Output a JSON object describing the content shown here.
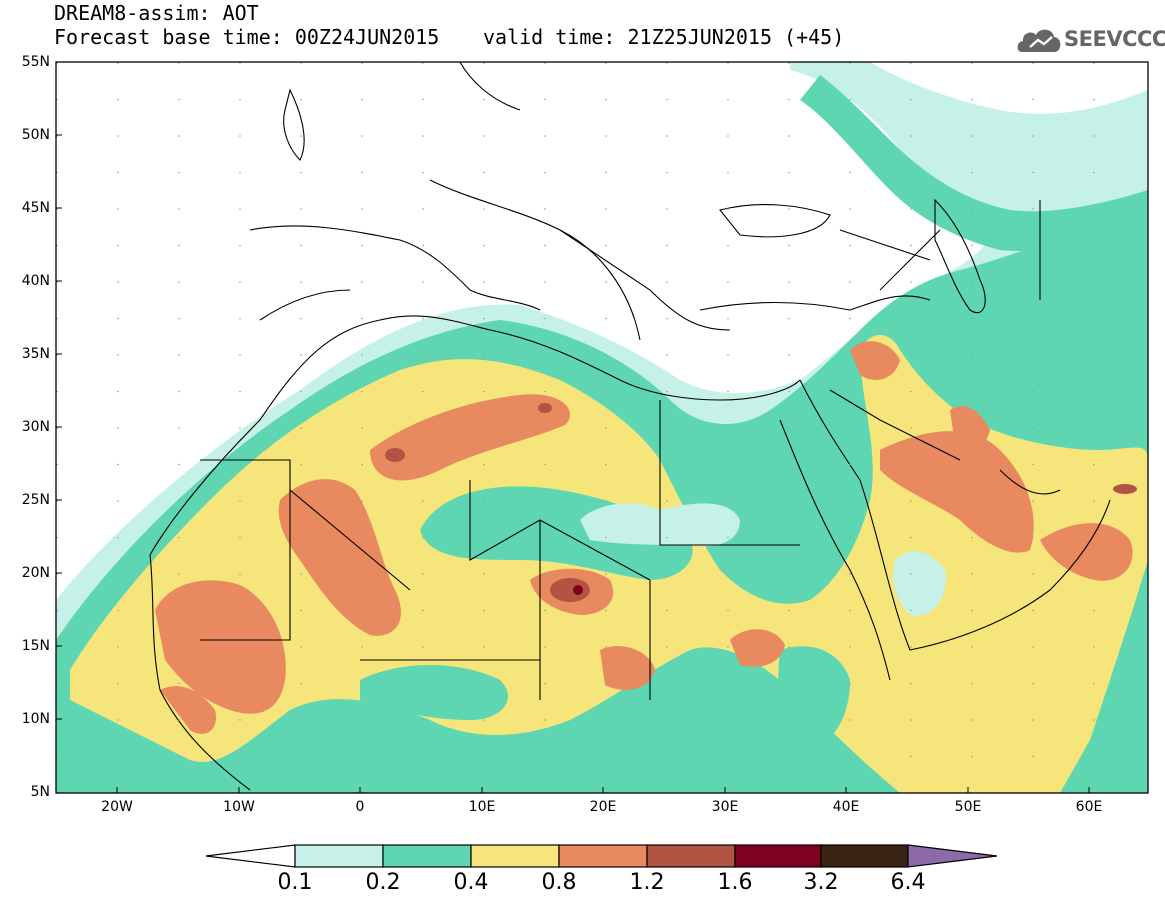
{
  "header": {
    "title_line1": "DREAM8-assim: AOT",
    "title_line2": "Forecast base time: 00Z24JUN2015",
    "valid_time": "valid time: 21Z25JUN2015 (+45)",
    "logo_text": "SEEVCCC"
  },
  "axes": {
    "lat_labels": [
      "55N",
      "50N",
      "45N",
      "40N",
      "35N",
      "30N",
      "25N",
      "20N",
      "15N",
      "10N",
      "5N"
    ],
    "lon_labels": [
      "20W",
      "10W",
      "0",
      "10E",
      "20E",
      "30E",
      "40E",
      "50E",
      "60E"
    ]
  },
  "colorbar": {
    "labels": [
      "0.1",
      "0.2",
      "0.4",
      "0.8",
      "1.2",
      "1.6",
      "3.2",
      "6.4"
    ],
    "colors": [
      "#ffffff",
      "#c6f1e9",
      "#5ed6b1",
      "#f6e57a",
      "#e8895f",
      "#b25444",
      "#7f0020",
      "#3a2414",
      "#8d6aa8"
    ]
  },
  "colors": {
    "c01": "#c6f1e9",
    "c02": "#5ed6b1",
    "c04": "#f6e57a",
    "c08": "#e8895f",
    "c12": "#b25444",
    "c16": "#7f0020"
  }
}
